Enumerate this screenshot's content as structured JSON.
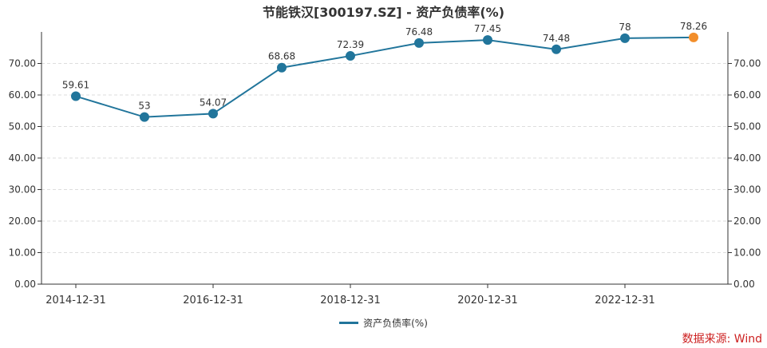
{
  "chart_data": {
    "type": "line",
    "title": "节能铁汉[300197.SZ] - 资产负债率(%)",
    "x": [
      "2014-12-31",
      "2015-12-31",
      "2016-12-31",
      "2017-12-31",
      "2018-12-31",
      "2019-12-31",
      "2020-12-31",
      "2021-12-31",
      "2022-12-31",
      "2023-12-31"
    ],
    "x_tick_labels": [
      "2014-12-31",
      "2016-12-31",
      "2018-12-31",
      "2020-12-31",
      "2022-12-31"
    ],
    "y_tick_labels": [
      "0.00",
      "10.00",
      "20.00",
      "30.00",
      "40.00",
      "50.00",
      "60.00",
      "70.00"
    ],
    "series": [
      {
        "name": "资产负债率(%)",
        "values": [
          59.61,
          53,
          54.07,
          68.68,
          72.39,
          76.48,
          77.45,
          74.48,
          78,
          78.26
        ],
        "data_labels": [
          "59.61",
          "53",
          "54.07",
          "68.68",
          "72.39",
          "76.48",
          "77.45",
          "74.48",
          "78",
          "78.26"
        ]
      }
    ],
    "ylim": [
      0,
      80
    ],
    "y_axis": "both sides",
    "grid": "horizontal dashed",
    "legend": "bottom-center",
    "colors": {
      "line": "#21759b",
      "highlight_point": "#f28e2b",
      "source_text": "#cc1f1f"
    },
    "highlight_last_point": true
  },
  "source": "数据来源: Wind"
}
